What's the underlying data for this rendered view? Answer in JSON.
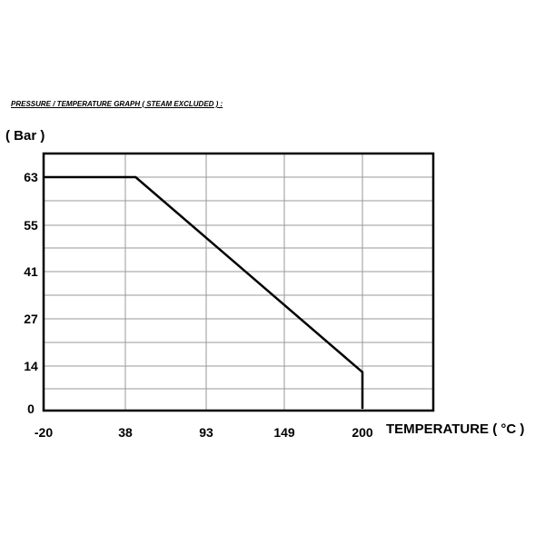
{
  "chart_data": {
    "type": "line",
    "title": "PRESSURE / TEMPERATURE GRAPH ( STEAM EXCLUDED ) :",
    "ylabel": "( Bar )",
    "xlabel": "TEMPERATURE ( °C )",
    "x_tick_labels": [
      "-20",
      "38",
      "93",
      "149",
      "200"
    ],
    "y_tick_labels": [
      "63",
      "55",
      "41",
      "27",
      "14",
      "0"
    ],
    "grid": true,
    "series": [
      {
        "points": [
          {
            "x": "-20",
            "y": 63
          },
          {
            "x": "45",
            "y": 63
          },
          {
            "x": "200",
            "y": 12
          },
          {
            "x": "200",
            "y": 0
          }
        ]
      }
    ]
  }
}
